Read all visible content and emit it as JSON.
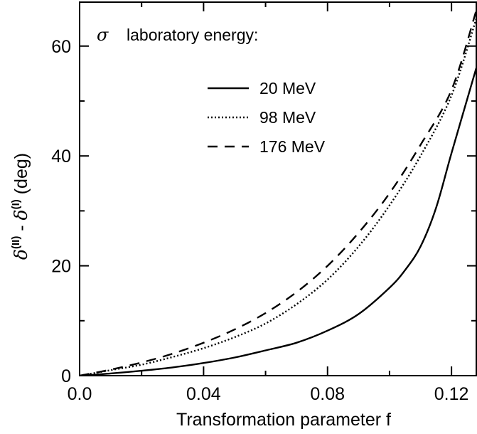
{
  "chart_data": {
    "type": "line",
    "xlabel": "Transformation parameter f",
    "ylabel": {
      "delta": "δ",
      "sup_a": "(II)",
      "sep": " - ",
      "sup_b": "(I)",
      "unit": " (deg)"
    },
    "xlim": [
      0.0,
      0.128
    ],
    "ylim": [
      0,
      68
    ],
    "x_ticks": [
      {
        "value": 0.0,
        "label": "0.0"
      },
      {
        "value": 0.04,
        "label": "0.04"
      },
      {
        "value": 0.08,
        "label": "0.08"
      },
      {
        "value": 0.12,
        "label": "0.12"
      }
    ],
    "x_minor_ticks": [
      0.02,
      0.06,
      0.1
    ],
    "y_ticks": [
      {
        "value": 0,
        "label": "0"
      },
      {
        "value": 20,
        "label": "20"
      },
      {
        "value": 40,
        "label": "40"
      },
      {
        "value": 60,
        "label": "60"
      }
    ],
    "y_minor_ticks": [
      10,
      30,
      50
    ],
    "legend": {
      "title_symbol": "σ",
      "title": "laboratory energy:",
      "placement": "top-center"
    },
    "series": [
      {
        "name": "20 MeV",
        "style": "solid",
        "x": [
          0.0,
          0.01,
          0.02,
          0.03,
          0.04,
          0.05,
          0.06,
          0.07,
          0.08,
          0.09,
          0.1,
          0.105,
          0.11,
          0.115,
          0.12,
          0.128
        ],
        "y": [
          0.0,
          0.4,
          0.9,
          1.5,
          2.3,
          3.3,
          4.6,
          6.0,
          8.2,
          11.2,
          16.0,
          19.2,
          23.5,
          30.5,
          40.5,
          56.0
        ]
      },
      {
        "name": "98 MeV",
        "style": "dotted",
        "x": [
          0.0,
          0.01,
          0.02,
          0.03,
          0.04,
          0.05,
          0.06,
          0.07,
          0.08,
          0.09,
          0.1,
          0.11,
          0.12,
          0.128
        ],
        "y": [
          0.0,
          1.0,
          2.0,
          3.4,
          5.0,
          7.0,
          9.5,
          13.0,
          17.5,
          23.5,
          31.0,
          40.0,
          51.0,
          65.0
        ]
      },
      {
        "name": "176 MeV",
        "style": "dashed",
        "x": [
          0.0,
          0.01,
          0.02,
          0.03,
          0.04,
          0.05,
          0.06,
          0.07,
          0.08,
          0.09,
          0.1,
          0.11,
          0.12,
          0.128
        ],
        "y": [
          0.0,
          1.1,
          2.4,
          4.0,
          6.0,
          8.4,
          11.4,
          15.2,
          20.0,
          26.0,
          33.2,
          42.0,
          52.0,
          66.5
        ]
      }
    ]
  }
}
